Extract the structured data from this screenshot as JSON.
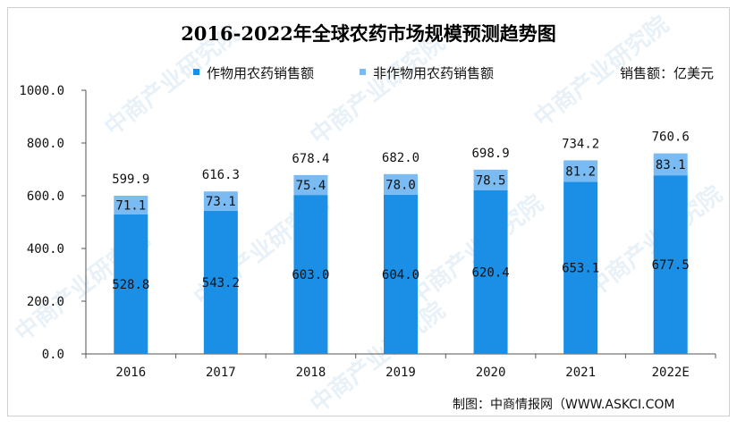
{
  "title": "2016-2022年全球农药市场规模预测趋势图",
  "unit_label": "销售额：亿美元",
  "footer": "制图：中商情报网（WWW.ASKCI.COM",
  "watermark_text": "中商产业研究院",
  "colors": {
    "primary": "#1b8fe6",
    "secondary": "#79bbf2",
    "background": "#ffffff"
  },
  "chart_data": {
    "type": "bar",
    "stacked": true,
    "categories": [
      "2016",
      "2017",
      "2018",
      "2019",
      "2020",
      "2021",
      "2022E"
    ],
    "series": [
      {
        "name": "作物用农药销售额",
        "values": [
          528.8,
          543.2,
          603.0,
          604.0,
          620.4,
          653.1,
          677.5
        ],
        "color": "#1b8fe6"
      },
      {
        "name": "非作物用农药销售额",
        "values": [
          71.1,
          73.1,
          75.4,
          78.0,
          78.5,
          81.2,
          83.1
        ],
        "color": "#79bbf2"
      }
    ],
    "totals": [
      599.9,
      616.3,
      678.4,
      682.0,
      698.9,
      734.2,
      760.6
    ],
    "y_ticks": [
      "0.0",
      "200.0",
      "400.0",
      "600.0",
      "800.0",
      "1000.0"
    ],
    "ylim": [
      0,
      1000
    ],
    "legend_position": "top-center",
    "grid": false
  }
}
